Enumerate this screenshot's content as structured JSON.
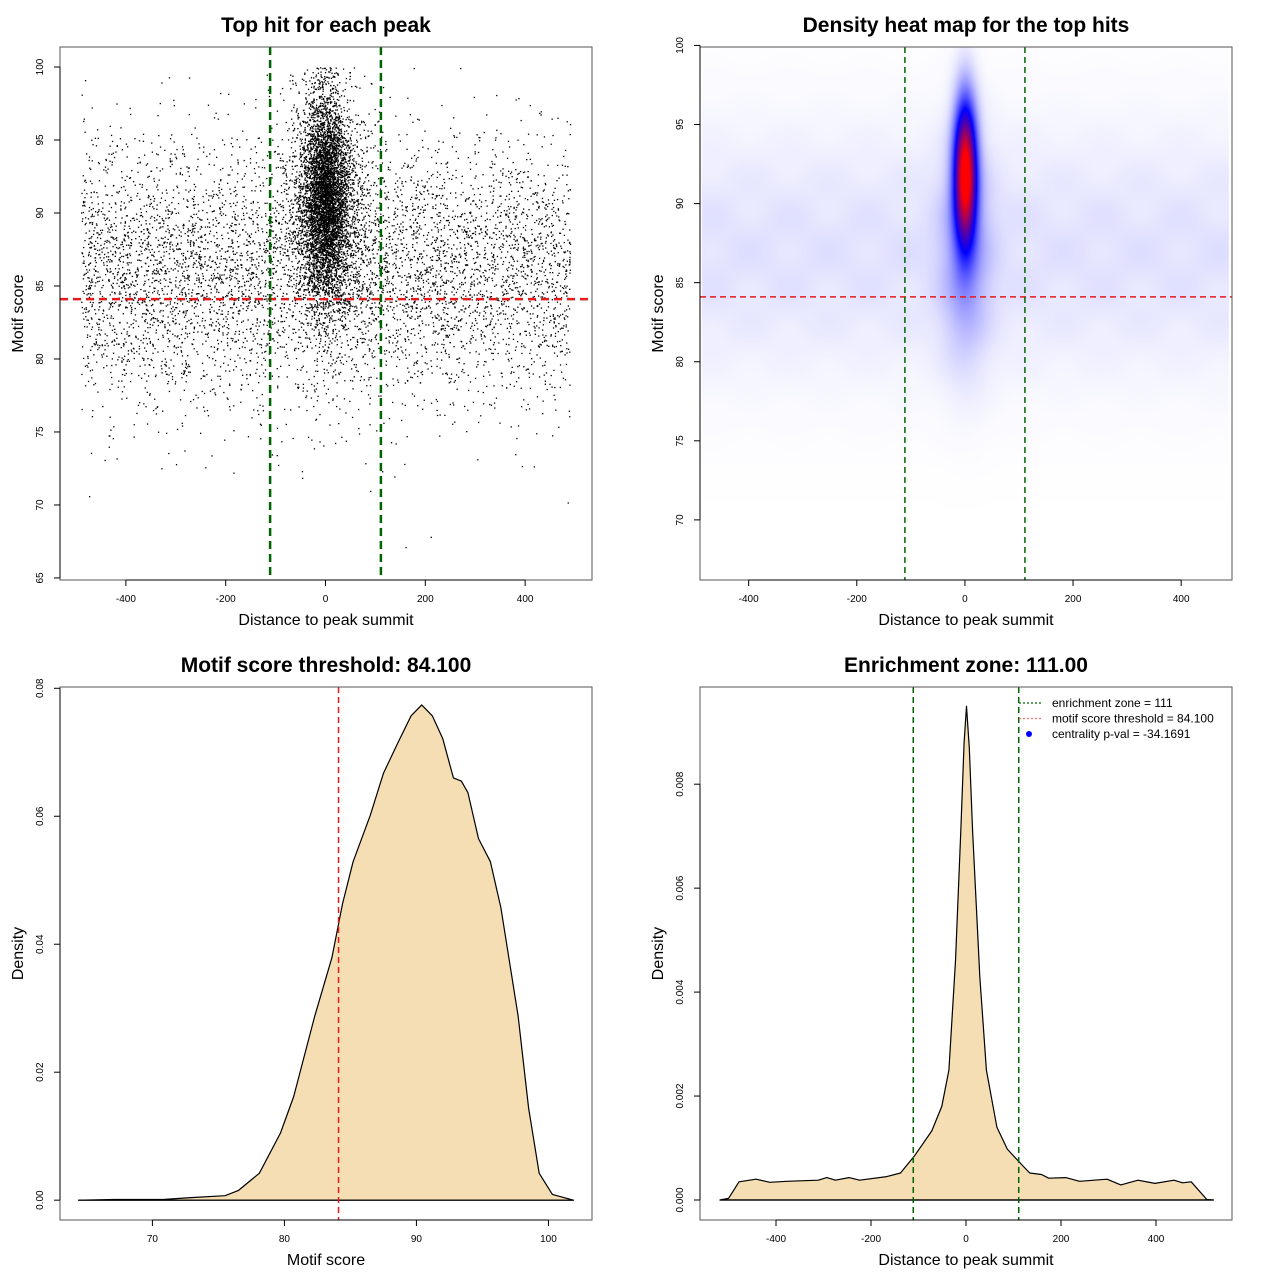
{
  "chart_data": [
    {
      "type": "scatter",
      "title": "Top hit for each peak",
      "xlabel": "Distance to peak summit",
      "ylabel": "Motif score",
      "xlim": [
        -532,
        534
      ],
      "ylim": [
        64.86,
        101.37
      ],
      "xticks": [
        -400,
        -200,
        0,
        200,
        400
      ],
      "yticks": [
        65,
        70,
        75,
        80,
        85,
        90,
        95,
        100
      ],
      "hlines": [
        {
          "value": 84.1,
          "color": "#e41a1c"
        }
      ],
      "vlines": [
        {
          "value": -111,
          "color": "#006400"
        },
        {
          "value": 111,
          "color": "#006400"
        }
      ],
      "point_color": "#000000",
      "approx_points": 12000,
      "distribution": {
        "background": {
          "x_range": [
            -490,
            490
          ],
          "y_mean": 86,
          "y_sd": 4.5
        },
        "center": {
          "x_mean": 0,
          "x_sd": 22,
          "y_mean": 91,
          "y_sd": 3.6
        },
        "y_max": 100
      }
    },
    {
      "type": "heatmap",
      "title": "Density heat map for the top hits",
      "xlabel": "Distance to peak summit",
      "ylabel": "Motif score",
      "xlim": [
        -490,
        494
      ],
      "ylim": [
        66.2,
        99.9
      ],
      "xticks": [
        -400,
        -200,
        0,
        200,
        400
      ],
      "yticks": [
        70,
        75,
        80,
        85,
        90,
        95,
        100
      ],
      "hlines": [
        {
          "value": 84.1,
          "color": "#e41a1c"
        }
      ],
      "vlines": [
        {
          "value": -111,
          "color": "#006400"
        },
        {
          "value": 111,
          "color": "#006400"
        }
      ],
      "colors": [
        "#ffffff",
        "#0000ff",
        "#ff0000"
      ],
      "hotspot": {
        "x": 0,
        "y": 92
      }
    },
    {
      "type": "area",
      "title": "Motif score threshold: 84.100",
      "xlabel": "Motif score",
      "ylabel": "Density",
      "xlim": [
        63.0,
        103.3
      ],
      "ylim": [
        -0.0031,
        0.0802
      ],
      "xticks": [
        70,
        80,
        90,
        100
      ],
      "yticks": [
        0,
        0.02,
        0.04,
        0.06,
        0.08
      ],
      "ytick_labels": [
        "0.00",
        "0.02",
        "0.04",
        "0.06",
        "0.08"
      ],
      "vlines": [
        {
          "value": 84.1,
          "color": "#e41a1c"
        }
      ],
      "fill": "#f5deb3",
      "x": [
        64.4,
        67.1,
        70.8,
        72.9,
        75.5,
        76.5,
        78.1,
        79.7,
        80.7,
        82.3,
        83.6,
        84.4,
        85.2,
        86.5,
        87.5,
        88.6,
        89.6,
        90.4,
        91.2,
        92.0,
        92.8,
        93.4,
        93.9,
        94.7,
        95.6,
        96.4,
        97.7,
        98.5,
        99.3,
        100.3,
        101.9
      ],
      "y": [
        0,
        0.0001,
        0.0001,
        0.0004,
        0.0007,
        0.0015,
        0.0042,
        0.0105,
        0.0162,
        0.0288,
        0.0379,
        0.0463,
        0.0529,
        0.0601,
        0.0667,
        0.0715,
        0.0757,
        0.0774,
        0.0757,
        0.0721,
        0.066,
        0.0655,
        0.0637,
        0.0565,
        0.0529,
        0.0457,
        0.0288,
        0.0144,
        0.0042,
        0.0009,
        0
      ]
    },
    {
      "type": "area",
      "title": "Enrichment zone: 111.00",
      "xlabel": "Distance to peak summit",
      "ylabel": "Density",
      "xlim": [
        -560,
        560
      ],
      "ylim": [
        -0.000385,
        0.00987
      ],
      "xticks": [
        -400,
        -200,
        0,
        200,
        400
      ],
      "yticks": [
        0,
        0.002,
        0.004,
        0.006,
        0.008
      ],
      "ytick_labels": [
        "0.000",
        "0.002",
        "0.004",
        "0.006",
        "0.008"
      ],
      "vlines": [
        {
          "value": -111,
          "color": "#006400"
        },
        {
          "value": 111,
          "color": "#006400"
        }
      ],
      "fill": "#f5deb3",
      "x": [
        -518,
        -500,
        -478,
        -442,
        -413,
        -377,
        -311,
        -293,
        -275,
        -246,
        -224,
        -167,
        -138,
        -109,
        -72,
        -51,
        -36,
        -22,
        -11,
        -4,
        1,
        7,
        14,
        29,
        43,
        65,
        87,
        112,
        134,
        159,
        174,
        210,
        239,
        297,
        326,
        362,
        398,
        438,
        456,
        474,
        507,
        521
      ],
      "y": [
        0,
        3e-05,
        0.00035,
        0.0004,
        0.00034,
        0.00036,
        0.00038,
        0.00043,
        0.00038,
        0.00043,
        0.00038,
        0.00045,
        0.00052,
        0.00084,
        0.00133,
        0.0018,
        0.0025,
        0.0046,
        0.0071,
        0.0088,
        0.0095,
        0.0087,
        0.0071,
        0.0043,
        0.0025,
        0.0014,
        0.00098,
        0.00073,
        0.00052,
        0.00049,
        0.00042,
        0.00043,
        0.00036,
        0.0004,
        0.00029,
        0.00038,
        0.00032,
        0.00038,
        0.00033,
        0.00035,
        1e-05,
        0
      ],
      "legend": {
        "position": "top-right",
        "items": [
          {
            "label": "enrichment zone = 111",
            "color": "#006400",
            "symbol": "dotted-line"
          },
          {
            "label": "motif score threshold = 84.100",
            "color": "#ff6666",
            "symbol": "dotted-line"
          },
          {
            "label": "centrality p-val = -34.1691",
            "color": "#0000ff",
            "symbol": "point"
          }
        ]
      }
    }
  ]
}
